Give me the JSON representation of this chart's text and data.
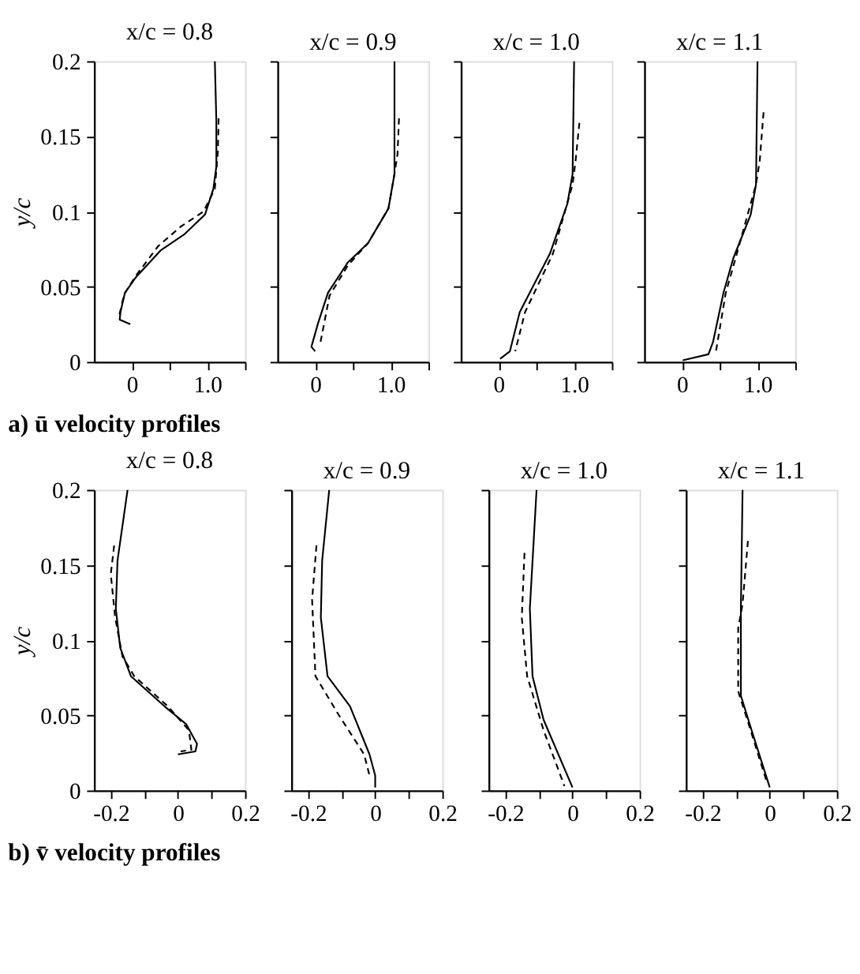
{
  "chart_data": [
    {
      "type": "line",
      "title": "x/c = 0.8",
      "ylabel": "y/c",
      "annotations": [
        "a) ū velocity profiles"
      ],
      "grid": false,
      "xlim": [
        -0.5,
        1.5
      ],
      "xticks": [
        0,
        {
          "value": 0.5,
          "label": null
        },
        {
          "value": 1.0,
          "label": "1.0"
        },
        {
          "value": 1.5,
          "label": null
        }
      ],
      "ylim": [
        0,
        0.2
      ],
      "yticks": [
        0,
        0.05,
        0.1,
        0.15,
        0.2
      ],
      "series": [
        {
          "color": "#000000",
          "line_style": "solid",
          "x": [
            1.1,
            1.12,
            1.12,
            1.08,
            0.97,
            0.7,
            0.38,
            0.05,
            -0.09,
            -0.15,
            -0.16,
            -0.02
          ],
          "values": [
            0.2,
            0.16,
            0.13,
            0.115,
            0.098,
            0.085,
            0.074,
            0.056,
            0.046,
            0.033,
            0.028,
            0.025
          ]
        },
        {
          "color": "#000000",
          "line_style": "dashed",
          "x": [
            1.15,
            1.14,
            1.1,
            0.95,
            0.65,
            0.35,
            0.05,
            -0.1,
            -0.17
          ],
          "values": [
            0.162,
            0.14,
            0.115,
            0.1,
            0.09,
            0.077,
            0.057,
            0.045,
            0.03
          ]
        }
      ]
    },
    {
      "type": "line",
      "title": "x/c = 0.9",
      "tick_labels": "x",
      "grid": false,
      "xlim": [
        -0.5,
        1.5
      ],
      "xticks": [
        0,
        {
          "value": 0.5,
          "label": null
        },
        {
          "value": 1.0,
          "label": "1.0"
        },
        {
          "value": 1.5,
          "label": null
        }
      ],
      "ylim": [
        0,
        0.2
      ],
      "yticks": [
        0,
        0.05,
        0.1,
        0.15,
        0.2
      ],
      "series": [
        {
          "color": "#000000",
          "line_style": "solid",
          "x": [
            1.05,
            1.05,
            0.97,
            0.7,
            0.43,
            0.17,
            0.04,
            -0.05,
            0
          ],
          "values": [
            0.2,
            0.125,
            0.102,
            0.079,
            0.066,
            0.046,
            0.026,
            0.01,
            0.007
          ]
        },
        {
          "color": "#000000",
          "line_style": "dashed",
          "x": [
            1.11,
            1.09,
            1.05,
            0.97,
            0.7,
            0.43,
            0.19,
            0.07
          ],
          "values": [
            0.162,
            0.138,
            0.125,
            0.102,
            0.079,
            0.064,
            0.044,
            0.013
          ]
        }
      ]
    },
    {
      "type": "line",
      "title": "x/c = 1.0",
      "tick_labels": "x",
      "grid": false,
      "xlim": [
        -0.5,
        1.5
      ],
      "xticks": [
        0,
        {
          "value": 0.5,
          "label": null
        },
        {
          "value": 1.0,
          "label": "1.0"
        },
        {
          "value": 1.5,
          "label": null
        }
      ],
      "ylim": [
        0,
        0.2
      ],
      "yticks": [
        0,
        0.05,
        0.1,
        0.15,
        0.2
      ],
      "series": [
        {
          "color": "#000000",
          "line_style": "solid",
          "x": [
            1.0,
            0.98,
            0.91,
            0.68,
            0.28,
            0.15,
            0.02
          ],
          "values": [
            0.2,
            0.125,
            0.105,
            0.072,
            0.033,
            0.007,
            0.002
          ]
        },
        {
          "color": "#000000",
          "line_style": "dashed",
          "x": [
            1.07,
            1.02,
            0.98,
            0.72,
            0.35,
            0.22
          ],
          "values": [
            0.159,
            0.134,
            0.118,
            0.072,
            0.033,
            0.007
          ]
        }
      ]
    },
    {
      "type": "line",
      "title": "x/c = 1.1",
      "tick_labels": "x",
      "grid": false,
      "xlim": [
        -0.5,
        1.5
      ],
      "xticks": [
        0,
        {
          "value": 0.5,
          "label": null
        },
        {
          "value": 1.0,
          "label": "1.0"
        },
        {
          "value": 1.5,
          "label": null
        }
      ],
      "ylim": [
        0,
        0.2
      ],
      "yticks": [
        0,
        0.05,
        0.1,
        0.15,
        0.2
      ],
      "series": [
        {
          "color": "#000000",
          "line_style": "solid",
          "x": [
            1.0,
            0.98,
            0.91,
            0.68,
            0.55,
            0.41,
            0.35,
            0.01
          ],
          "values": [
            0.2,
            0.118,
            0.098,
            0.069,
            0.046,
            0.013,
            0.005,
            0.001
          ]
        },
        {
          "color": "#000000",
          "line_style": "dashed",
          "x": [
            1.08,
            1.03,
            0.98,
            0.71,
            0.58,
            0.45
          ],
          "values": [
            0.166,
            0.134,
            0.118,
            0.069,
            0.046,
            0.007
          ]
        }
      ]
    },
    {
      "type": "line",
      "title": "x/c = 0.8",
      "ylabel": "y/c",
      "annotations": [
        "b) v̄ velocity profiles"
      ],
      "grid": false,
      "xlim": [
        -0.25,
        0.2
      ],
      "xticks": [
        -0.2,
        {
          "value": -0.1,
          "label": null
        },
        0,
        {
          "value": 0.1,
          "label": null
        },
        0.2
      ],
      "ylim": [
        0,
        0.2
      ],
      "yticks": [
        0,
        0.05,
        0.1,
        0.15,
        0.2
      ],
      "series": [
        {
          "color": "#000000",
          "line_style": "solid",
          "x": [
            -0.15,
            -0.18,
            -0.185,
            -0.172,
            -0.14,
            -0.04,
            0.025,
            0.057,
            0.052,
            0
          ],
          "values": [
            0.2,
            0.153,
            0.121,
            0.095,
            0.076,
            0.056,
            0.044,
            0.031,
            0.026,
            0.024
          ]
        },
        {
          "color": "#000000",
          "line_style": "dashed",
          "x": [
            -0.19,
            -0.2,
            -0.187,
            -0.165,
            -0.13,
            -0.03,
            0.033,
            0.04,
            0.008
          ],
          "values": [
            0.163,
            0.144,
            0.115,
            0.089,
            0.076,
            0.056,
            0.04,
            0.027,
            0.026
          ]
        }
      ]
    },
    {
      "type": "line",
      "title": "x/c = 0.9",
      "tick_labels": "x",
      "grid": false,
      "xlim": [
        -0.25,
        0.2
      ],
      "xticks": [
        -0.2,
        {
          "value": -0.1,
          "label": null
        },
        0,
        {
          "value": 0.1,
          "label": null
        },
        0.2
      ],
      "ylim": [
        0,
        0.2
      ],
      "yticks": [
        0,
        0.05,
        0.1,
        0.15,
        0.2
      ],
      "series": [
        {
          "color": "#000000",
          "line_style": "solid",
          "x": [
            -0.137,
            -0.158,
            -0.162,
            -0.142,
            -0.075,
            -0.017,
            0,
            0
          ],
          "values": [
            0.2,
            0.153,
            0.115,
            0.076,
            0.056,
            0.024,
            0.01,
            0.002
          ]
        },
        {
          "color": "#000000",
          "line_style": "dashed",
          "x": [
            -0.175,
            -0.188,
            -0.178,
            -0.108,
            -0.033,
            -0.017
          ],
          "values": [
            0.163,
            0.127,
            0.076,
            0.05,
            0.024,
            0.01
          ]
        }
      ]
    },
    {
      "type": "line",
      "title": "x/c = 1.0",
      "tick_labels": "x",
      "grid": false,
      "xlim": [
        -0.25,
        0.2
      ],
      "xticks": [
        -0.2,
        {
          "value": -0.1,
          "label": null
        },
        0,
        {
          "value": 0.1,
          "label": null
        },
        0.2
      ],
      "ylim": [
        0,
        0.2
      ],
      "yticks": [
        0,
        0.05,
        0.1,
        0.15,
        0.2
      ],
      "series": [
        {
          "color": "#000000",
          "line_style": "solid",
          "x": [
            -0.107,
            -0.127,
            -0.119,
            -0.086,
            0
          ],
          "values": [
            0.2,
            0.121,
            0.076,
            0.047,
            0.002
          ]
        },
        {
          "color": "#000000",
          "line_style": "dashed",
          "x": [
            -0.143,
            -0.151,
            -0.135,
            -0.086,
            -0.024
          ],
          "values": [
            0.158,
            0.115,
            0.076,
            0.04,
            0.003
          ]
        }
      ]
    },
    {
      "type": "line",
      "title": "x/c = 1.1",
      "tick_labels": "x",
      "grid": false,
      "xlim": [
        -0.25,
        0.2
      ],
      "xticks": [
        -0.2,
        {
          "value": -0.1,
          "label": null
        },
        0,
        {
          "value": 0.1,
          "label": null
        },
        0.2
      ],
      "ylim": [
        0,
        0.2
      ],
      "yticks": [
        0,
        0.05,
        0.1,
        0.15,
        0.2
      ],
      "series": [
        {
          "color": "#000000",
          "line_style": "solid",
          "x": [
            -0.081,
            -0.086,
            -0.086,
            -0.054,
            0
          ],
          "values": [
            0.2,
            0.121,
            0.063,
            0.04,
            0.002
          ]
        },
        {
          "color": "#000000",
          "line_style": "dashed",
          "x": [
            -0.065,
            -0.081,
            -0.094,
            -0.094,
            -0.057,
            -0.008
          ],
          "values": [
            0.166,
            0.124,
            0.108,
            0.066,
            0.04,
            0.005
          ]
        }
      ]
    }
  ]
}
